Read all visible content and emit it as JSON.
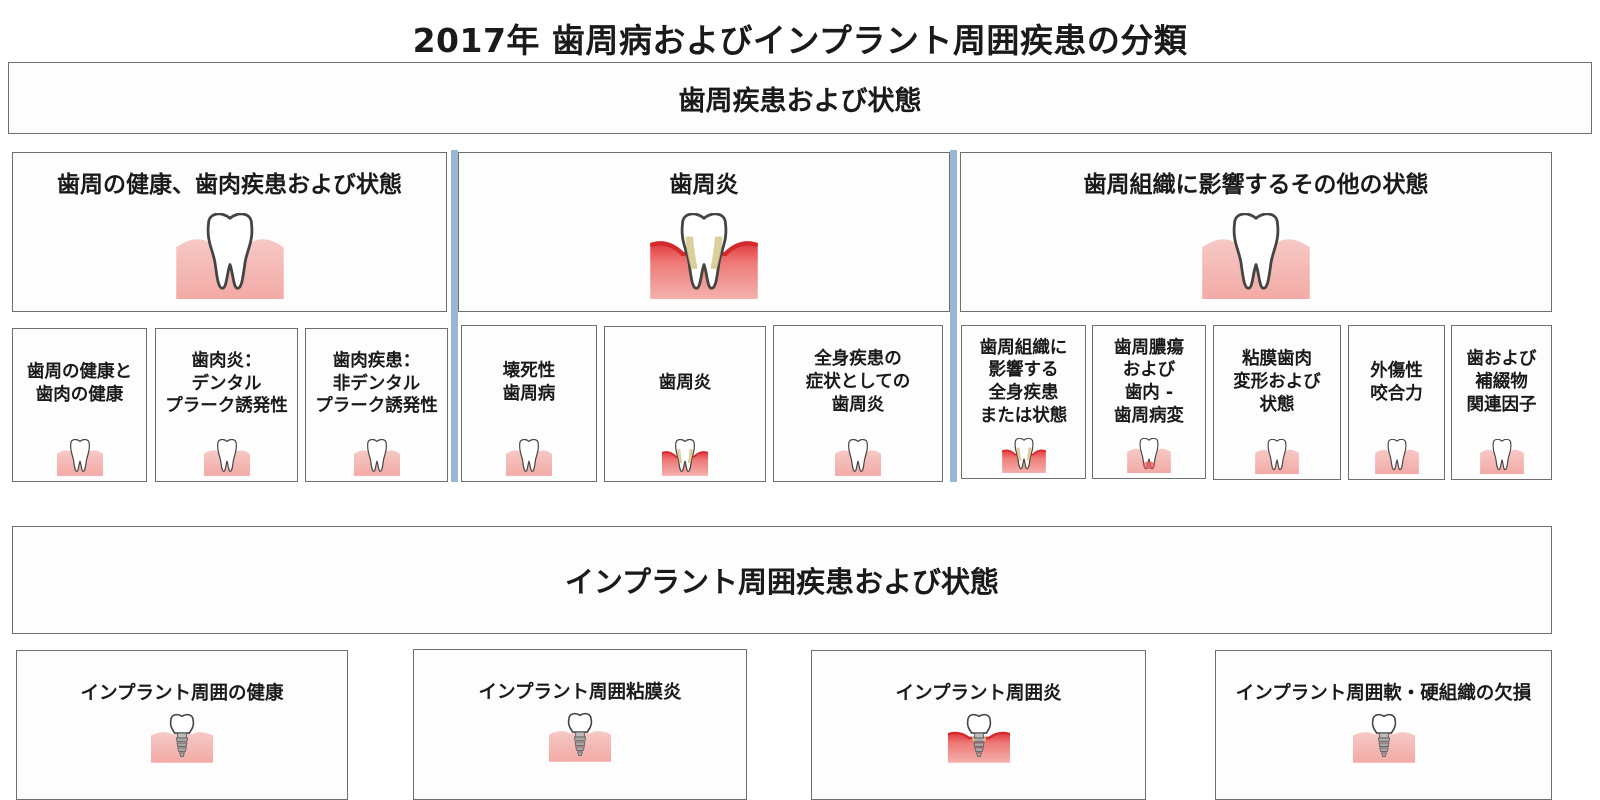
{
  "title": "2017年 歯周病およびインプラント周囲疾患の分類",
  "periodontal_section": {
    "label": "歯周疾患および状態",
    "categories": [
      {
        "title": "歯周の健康、歯肉疾患および状態",
        "icon": "healthy-tooth-icon",
        "items": [
          {
            "label": "歯周の健康と\n歯肉の健康",
            "icon": "healthy-tooth-icon"
          },
          {
            "label": "歯肉炎：\nデンタル\nプラーク誘発性",
            "icon": "healthy-tooth-icon"
          },
          {
            "label": "歯肉疾患：\n非デンタル\nプラーク誘発性",
            "icon": "healthy-tooth-icon"
          }
        ]
      },
      {
        "title": "歯周炎",
        "icon": "inflamed-tooth-icon",
        "items": [
          {
            "label": "壊死性\n歯周病",
            "icon": "healthy-tooth-icon"
          },
          {
            "label": "歯周炎",
            "icon": "inflamed-tooth-icon"
          },
          {
            "label": "全身疾患の\n症状としての\n歯周炎",
            "icon": "healthy-tooth-icon"
          }
        ]
      },
      {
        "title": "歯周組織に影響するその他の状態",
        "icon": "healthy-tooth-icon",
        "items": [
          {
            "label": "歯周組織に\n影響する\n全身疾患\nまたは状態",
            "icon": "inflamed-tooth-icon"
          },
          {
            "label": "歯周膿瘍\nおよび\n歯内 -\n歯周病変",
            "icon": "abscess-tooth-icon"
          },
          {
            "label": "粘膜歯肉\n変形および\n状態",
            "icon": "healthy-tooth-icon"
          },
          {
            "label": "外傷性\n咬合力",
            "icon": "healthy-tooth-icon"
          },
          {
            "label": "歯および\n補綴物\n関連因子",
            "icon": "healthy-tooth-icon"
          }
        ]
      }
    ]
  },
  "implant_section": {
    "label": "インプラント周囲疾患および状態",
    "items": [
      {
        "label": "インプラント周囲の健康",
        "icon": "implant-icon"
      },
      {
        "label": "インプラント周囲粘膜炎",
        "icon": "implant-icon"
      },
      {
        "label": "インプラント周囲炎",
        "icon": "inflamed-implant-icon"
      },
      {
        "label": "インプラント周囲軟・硬組織の欠損",
        "icon": "implant-icon"
      }
    ]
  },
  "colors": {
    "gum": "#f4b9b5",
    "gum_inflamed": "#e0484a",
    "tooth_fill": "#ffffff",
    "tooth_stroke": "#444444",
    "plaque": "#d6c789",
    "divider": "#9ab7d6"
  }
}
